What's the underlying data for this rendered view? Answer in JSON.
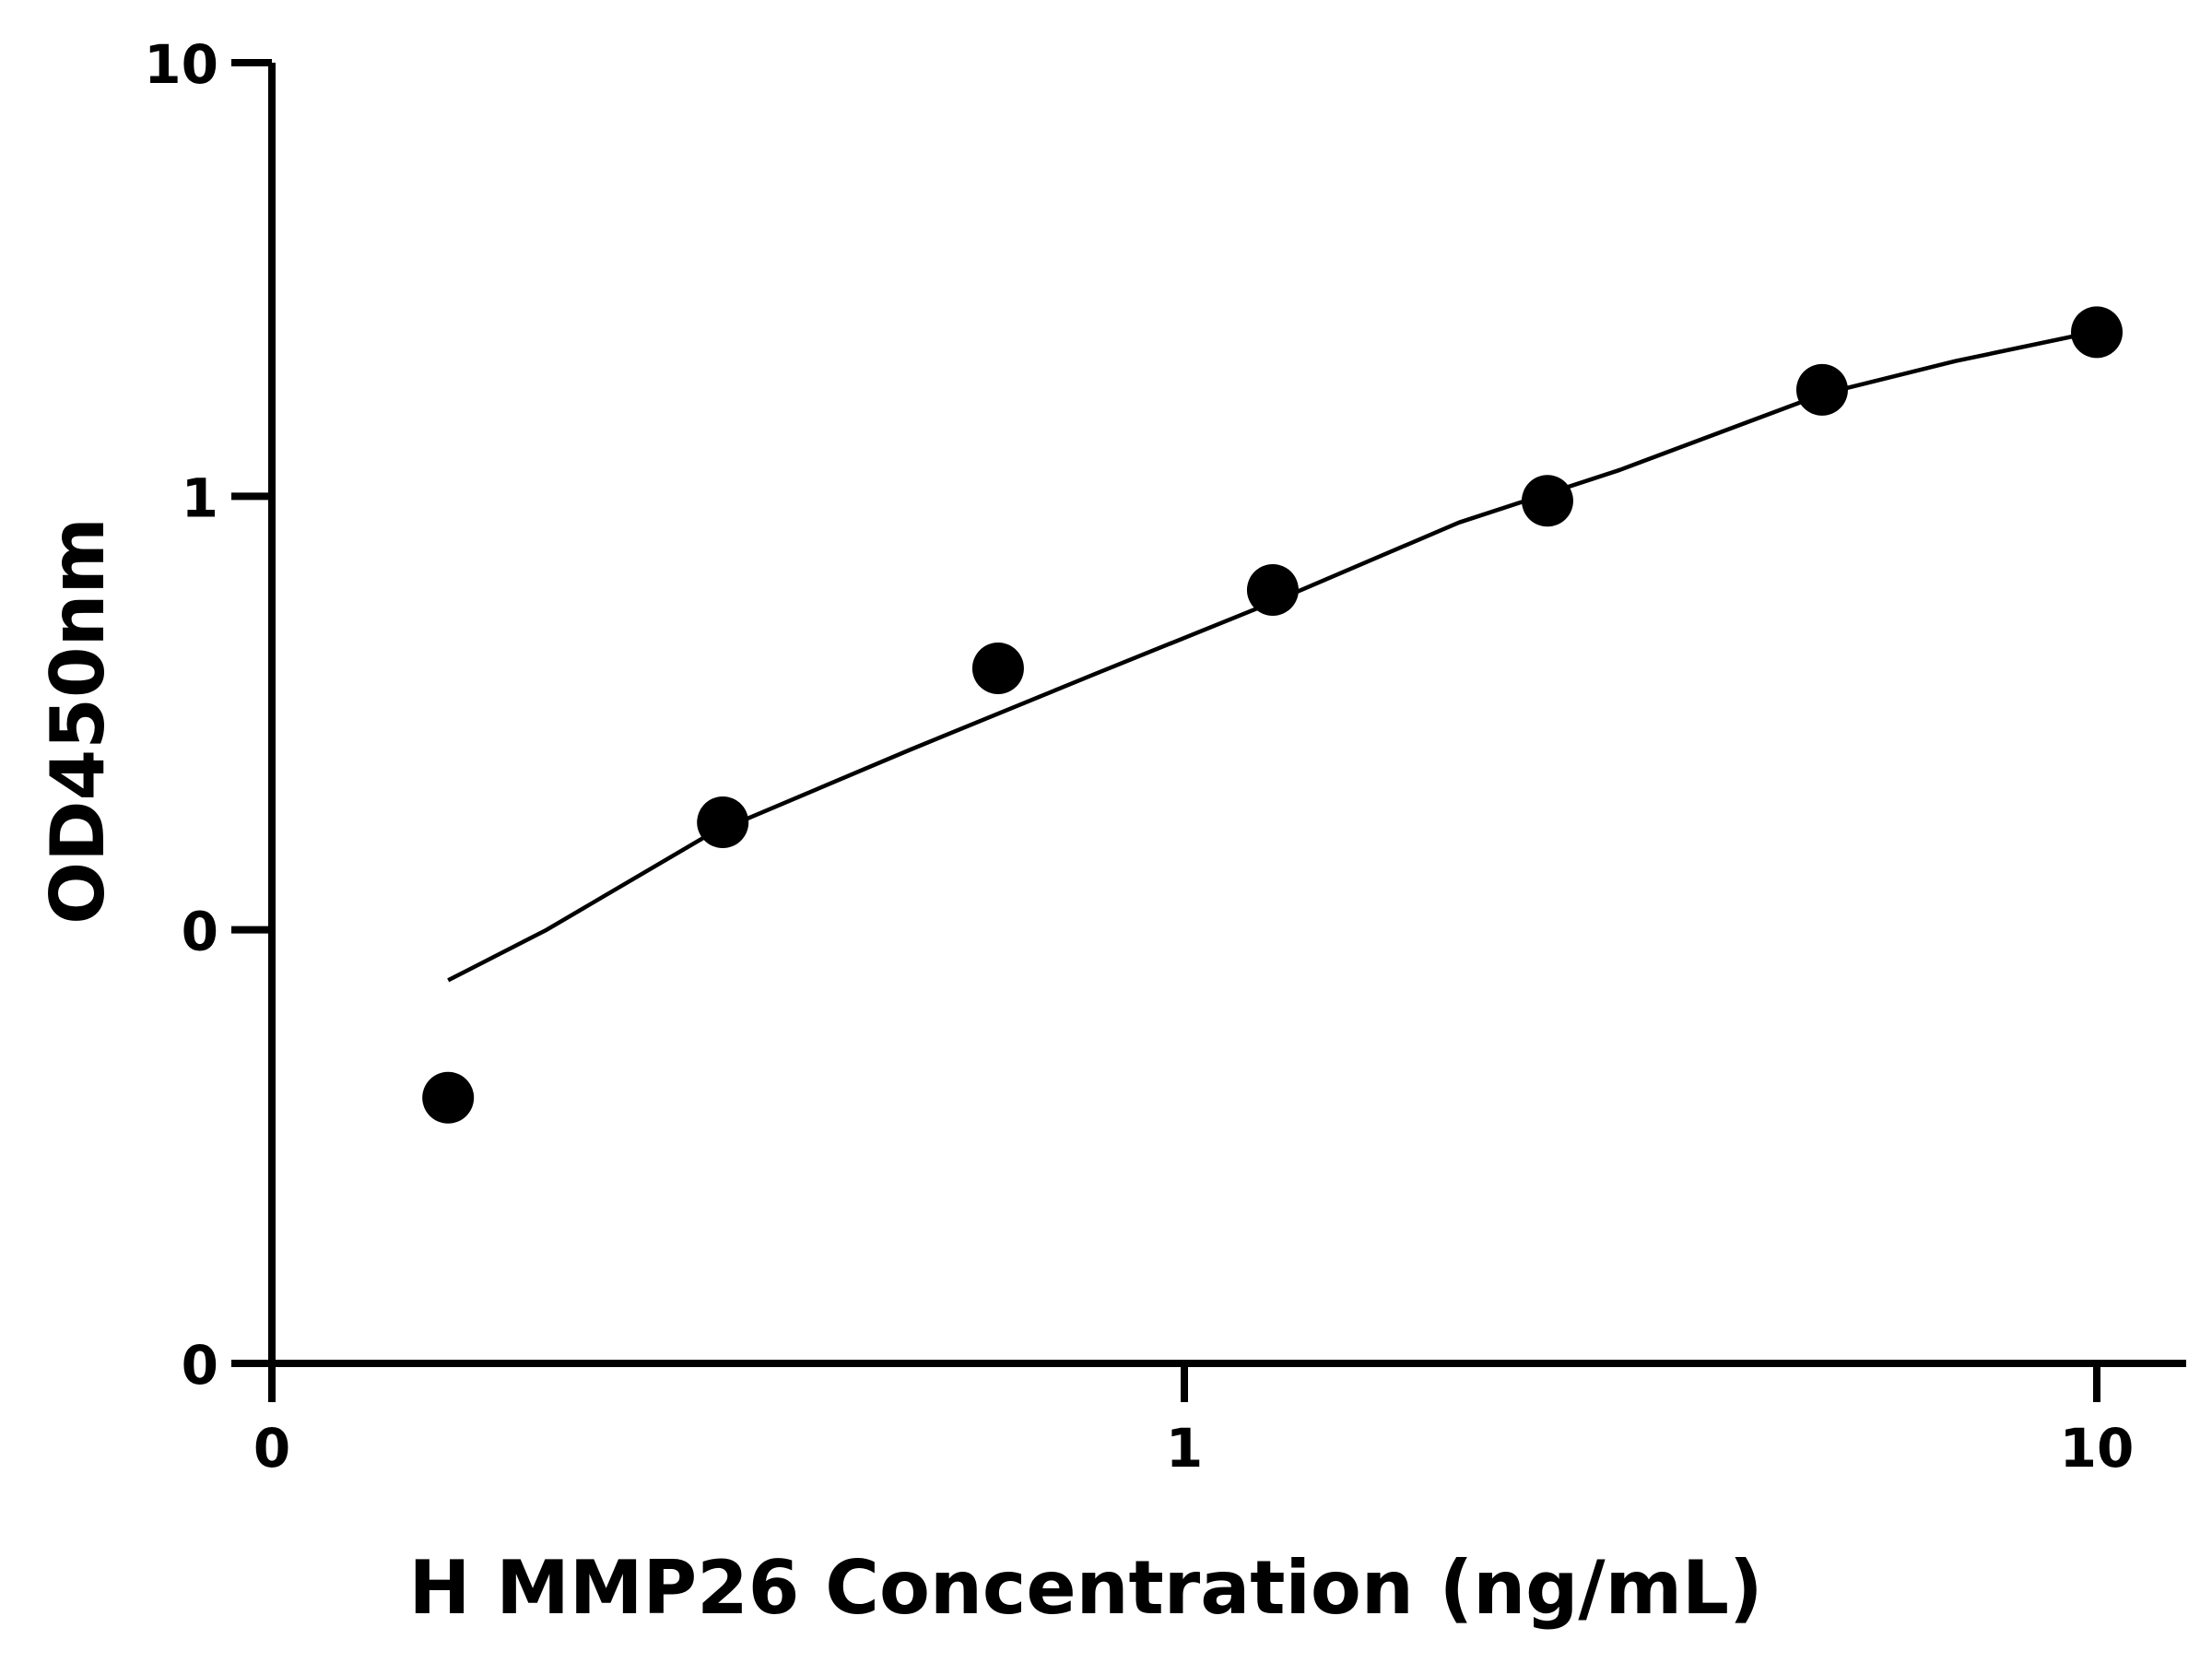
{
  "chart_data": {
    "type": "scatter",
    "title": "",
    "xlabel": "H MMP26 Concentration (ng/mL)",
    "ylabel": "OD450nm",
    "x_scale": "log",
    "y_scale": "log",
    "xlim": [
      0.1,
      10
    ],
    "ylim": [
      0.01,
      10
    ],
    "x_ticks": [
      0.1,
      1,
      10
    ],
    "x_tick_labels": [
      "0",
      "1",
      "10"
    ],
    "y_ticks": [
      0.01,
      0.1,
      1,
      10
    ],
    "y_tick_labels": [
      "0",
      "0",
      "1",
      "10"
    ],
    "grid": false,
    "legend": "none",
    "series": [
      {
        "kind": "points",
        "x": [
          0.156,
          0.312,
          0.625,
          1.25,
          2.5,
          5,
          10
        ],
        "y": [
          0.041,
          0.177,
          0.401,
          0.608,
          0.976,
          1.76,
          2.39
        ]
      },
      {
        "kind": "fit-curve",
        "x": [
          0.156,
          0.2,
          0.3,
          0.5,
          0.8,
          1.25,
          2.0,
          3.0,
          5.0,
          7.0,
          10.0
        ],
        "y": [
          0.0765,
          0.1,
          0.165,
          0.26,
          0.39,
          0.57,
          0.87,
          1.15,
          1.72,
          2.05,
          2.4
        ]
      }
    ],
    "colors": {
      "points": "#000000",
      "curve": "#000000",
      "axes": "#000000"
    }
  }
}
